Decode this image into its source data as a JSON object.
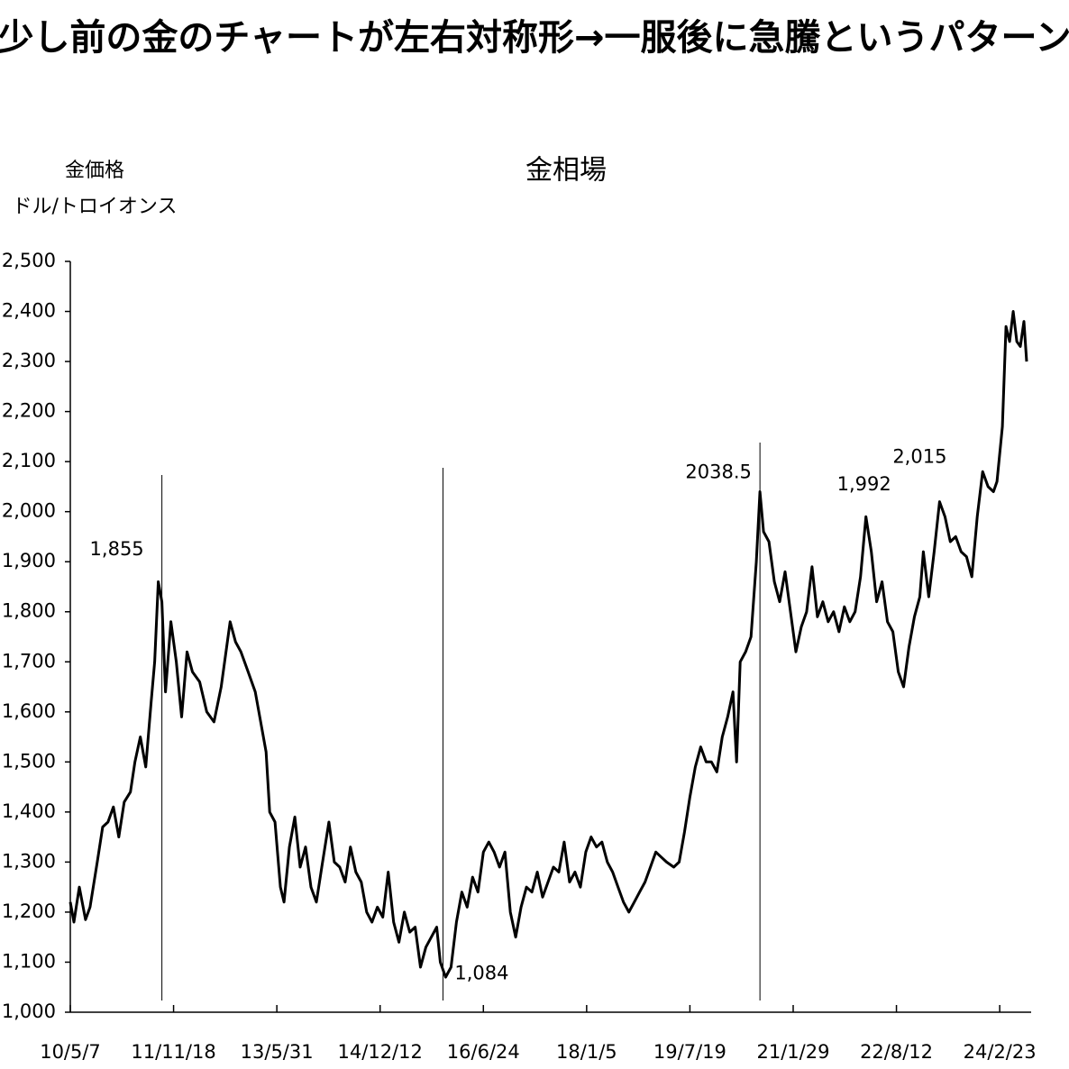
{
  "header": {
    "title": "少し前の金のチャートが左右対称形→一服後に急騰というパターン"
  },
  "chart_data": {
    "type": "line",
    "title": "金相場",
    "y_label_lines": [
      "金価格",
      "ドル/トロイオンス"
    ],
    "x": [
      0,
      4,
      10,
      17,
      22,
      30,
      36,
      42,
      48,
      54,
      60,
      67,
      72,
      78,
      84,
      90,
      94,
      98,
      102,
      106,
      112,
      118,
      124,
      130,
      136,
      144,
      152,
      160,
      168,
      178,
      184,
      190,
      198,
      206,
      212,
      218,
      222,
      228,
      234,
      238,
      244,
      250,
      256,
      262,
      268,
      274,
      280,
      288,
      294,
      300,
      306,
      312,
      318,
      324,
      330,
      336,
      342,
      348,
      354,
      360,
      366,
      372,
      378,
      384,
      390,
      396,
      402,
      408,
      412,
      418,
      424,
      430,
      436,
      442,
      448,
      454,
      460,
      466,
      472,
      478,
      484,
      490,
      496,
      502,
      508,
      514,
      520,
      526,
      532,
      538,
      544,
      550,
      556,
      562,
      568,
      574,
      580,
      586,
      592,
      598,
      604,
      610,
      616,
      622,
      628,
      634,
      640,
      646,
      652,
      658,
      664,
      672,
      678,
      684,
      690,
      696,
      702,
      708,
      714,
      720,
      726,
      732,
      738,
      742,
      746,
      752,
      758,
      764,
      768,
      772,
      778,
      784,
      790,
      796,
      802,
      808,
      814,
      820,
      826,
      832,
      838,
      844,
      850,
      856,
      862,
      868,
      874,
      880,
      886,
      892,
      898,
      904,
      910,
      916,
      922,
      928,
      934,
      940,
      946,
      950,
      956,
      962,
      968,
      974,
      980,
      986,
      992,
      998,
      1004,
      1010,
      1016,
      1022,
      1028,
      1032,
      1038,
      1042,
      1046,
      1050,
      1054,
      1058,
      1062,
      1065
    ],
    "values": [
      1220,
      1180,
      1250,
      1185,
      1210,
      1300,
      1370,
      1380,
      1410,
      1350,
      1420,
      1440,
      1500,
      1550,
      1490,
      1620,
      1700,
      1860,
      1820,
      1640,
      1780,
      1700,
      1590,
      1720,
      1680,
      1660,
      1600,
      1580,
      1650,
      1780,
      1740,
      1720,
      1680,
      1640,
      1580,
      1520,
      1400,
      1380,
      1250,
      1220,
      1330,
      1390,
      1290,
      1330,
      1250,
      1220,
      1290,
      1380,
      1300,
      1290,
      1260,
      1330,
      1280,
      1260,
      1200,
      1180,
      1210,
      1190,
      1280,
      1180,
      1140,
      1200,
      1160,
      1170,
      1090,
      1130,
      1150,
      1170,
      1100,
      1070,
      1090,
      1180,
      1240,
      1210,
      1270,
      1240,
      1320,
      1340,
      1320,
      1290,
      1320,
      1200,
      1150,
      1210,
      1250,
      1240,
      1280,
      1230,
      1260,
      1290,
      1280,
      1340,
      1260,
      1280,
      1250,
      1320,
      1350,
      1330,
      1340,
      1300,
      1280,
      1250,
      1220,
      1200,
      1220,
      1240,
      1260,
      1290,
      1320,
      1310,
      1300,
      1290,
      1300,
      1360,
      1430,
      1490,
      1530,
      1500,
      1500,
      1480,
      1550,
      1590,
      1640,
      1500,
      1700,
      1720,
      1750,
      1900,
      2040,
      1960,
      1940,
      1860,
      1820,
      1880,
      1800,
      1720,
      1770,
      1800,
      1890,
      1790,
      1820,
      1780,
      1800,
      1760,
      1810,
      1780,
      1800,
      1870,
      1990,
      1920,
      1820,
      1860,
      1780,
      1760,
      1680,
      1650,
      1730,
      1790,
      1830,
      1920,
      1830,
      1920,
      2020,
      1990,
      1940,
      1950,
      1920,
      1910,
      1870,
      1990,
      2080,
      2050,
      2040,
      2060,
      2170,
      2370,
      2340,
      2400,
      2340,
      2330,
      2380,
      2300
    ],
    "color": "#000000",
    "xlim": [
      0,
      1070
    ],
    "xticks": [
      {
        "value": 0,
        "label": "10/5/7"
      },
      {
        "value": 115,
        "label": "11/11/18"
      },
      {
        "value": 230,
        "label": "13/5/31"
      },
      {
        "value": 345,
        "label": "14/12/12"
      },
      {
        "value": 460,
        "label": "16/6/24"
      },
      {
        "value": 575,
        "label": "18/1/5"
      },
      {
        "value": 690,
        "label": "19/7/19"
      },
      {
        "value": 805,
        "label": "21/1/29"
      },
      {
        "value": 920,
        "label": "22/8/12"
      },
      {
        "value": 1035,
        "label": "24/2/23"
      }
    ],
    "ylim": [
      1000,
      2500
    ],
    "yticks": [
      {
        "value": 1000,
        "label": "1,000"
      },
      {
        "value": 1100,
        "label": "1,100"
      },
      {
        "value": 1200,
        "label": "1,200"
      },
      {
        "value": 1300,
        "label": "1,300"
      },
      {
        "value": 1400,
        "label": "1,400"
      },
      {
        "value": 1500,
        "label": "1,500"
      },
      {
        "value": 1600,
        "label": "1,600"
      },
      {
        "value": 1700,
        "label": "1,700"
      },
      {
        "value": 1800,
        "label": "1,800"
      },
      {
        "value": 1900,
        "label": "1,900"
      },
      {
        "value": 2000,
        "label": "2,000"
      },
      {
        "value": 2100,
        "label": "2,100"
      },
      {
        "value": 2200,
        "label": "2,200"
      },
      {
        "value": 2300,
        "label": "2,300"
      },
      {
        "value": 2400,
        "label": "2,400"
      },
      {
        "value": 2500,
        "label": "2,500"
      }
    ],
    "annotations": [
      {
        "label": "1,855",
        "x": 102,
        "value": 1855,
        "line": true
      },
      {
        "label": "1,084",
        "x": 415,
        "value": 1084,
        "line": true
      },
      {
        "label": "2038.5",
        "x": 768,
        "value": 2038.5,
        "line": true
      },
      {
        "label": "1,992",
        "x": 886,
        "value": 1992,
        "line": false
      },
      {
        "label": "2,015",
        "x": 968,
        "value": 2015,
        "line": false
      }
    ]
  }
}
